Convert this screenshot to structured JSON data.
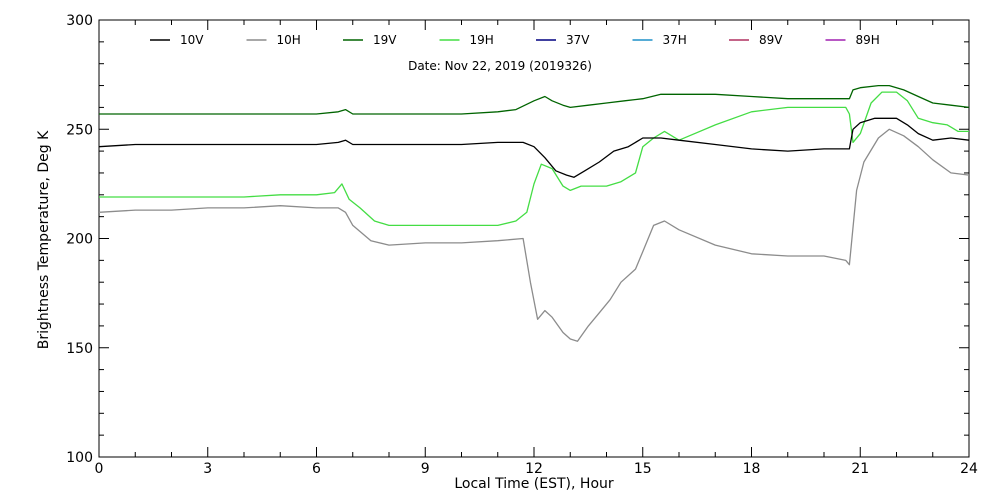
{
  "chart_data": {
    "type": "line",
    "annotation": "Date: Nov 22, 2019 (2019326)",
    "xlabel": "Local Time (EST), Hour",
    "ylabel": "Brightness Temperature, Deg K",
    "xlim": [
      0,
      24
    ],
    "ylim": [
      100,
      300
    ],
    "xticks": [
      0,
      3,
      6,
      9,
      12,
      15,
      18,
      21,
      24
    ],
    "xtick_labels": [
      "0",
      "3",
      "6",
      "9",
      "12",
      "15",
      "18",
      "21",
      "24"
    ],
    "yticks": [
      100,
      150,
      200,
      250,
      300
    ],
    "ytick_labels": [
      "100",
      "150",
      "200",
      "250",
      "300"
    ],
    "legend_position": "top",
    "grid": false,
    "series": [
      {
        "name": "10V",
        "color": "#000000",
        "x": [
          0,
          1,
          2,
          3,
          4,
          5,
          6,
          6.6,
          6.8,
          7,
          8,
          9,
          10,
          11,
          11.7,
          12.0,
          12.3,
          12.6,
          12.9,
          13.1,
          13.4,
          13.8,
          14.2,
          14.6,
          15.0,
          15.5,
          16,
          17,
          18,
          19,
          20,
          20.7,
          20.8,
          21.0,
          21.4,
          22.0,
          22.3,
          22.6,
          23.0,
          23.5,
          24
        ],
        "y": [
          242,
          243,
          243,
          243,
          243,
          243,
          243,
          244,
          245,
          243,
          243,
          243,
          243,
          244,
          244,
          242,
          237,
          231,
          229,
          228,
          231,
          235,
          240,
          242,
          246,
          246,
          245,
          243,
          241,
          240,
          241,
          241,
          250,
          253,
          255,
          255,
          252,
          248,
          245,
          246,
          245
        ]
      },
      {
        "name": "10H",
        "color": "#8c8c8c",
        "x": [
          0,
          1,
          2,
          3,
          4,
          5,
          6,
          6.6,
          6.8,
          7,
          7.5,
          8,
          9,
          10,
          11,
          11.7,
          11.9,
          12.1,
          12.3,
          12.5,
          12.8,
          13.0,
          13.2,
          13.5,
          13.8,
          14.1,
          14.4,
          14.8,
          15.0,
          15.3,
          15.6,
          16,
          17,
          18,
          19,
          20,
          20.6,
          20.7,
          20.9,
          21.1,
          21.5,
          21.8,
          22.2,
          22.6,
          23.0,
          23.5,
          24
        ],
        "y": [
          212,
          213,
          213,
          214,
          214,
          215,
          214,
          214,
          212,
          206,
          199,
          197,
          198,
          198,
          199,
          200,
          180,
          163,
          167,
          164,
          157,
          154,
          153,
          160,
          166,
          172,
          180,
          186,
          194,
          206,
          208,
          204,
          197,
          193,
          192,
          192,
          190,
          188,
          222,
          235,
          246,
          250,
          247,
          242,
          236,
          230,
          229
        ]
      },
      {
        "name": "19V",
        "color": "#006400",
        "x": [
          0,
          1,
          2,
          3,
          4,
          5,
          6,
          6.6,
          6.8,
          7,
          8,
          9,
          10,
          11,
          11.5,
          12.0,
          12.3,
          12.5,
          12.8,
          13.0,
          13.5,
          14.0,
          14.5,
          15.0,
          15.5,
          16,
          17,
          18,
          19,
          20,
          20.7,
          20.8,
          21.0,
          21.5,
          21.8,
          22.2,
          22.6,
          23.0,
          23.5,
          24
        ],
        "y": [
          257,
          257,
          257,
          257,
          257,
          257,
          257,
          258,
          259,
          257,
          257,
          257,
          257,
          258,
          259,
          263,
          265,
          263,
          261,
          260,
          261,
          262,
          263,
          264,
          266,
          266,
          266,
          265,
          264,
          264,
          264,
          268,
          269,
          270,
          270,
          268,
          265,
          262,
          261,
          260
        ]
      },
      {
        "name": "19H",
        "color": "#44dd44",
        "x": [
          0,
          1,
          2,
          3,
          4,
          5,
          6,
          6.5,
          6.7,
          6.9,
          7.2,
          7.6,
          8,
          9,
          10,
          11,
          11.5,
          11.8,
          12.0,
          12.2,
          12.5,
          12.8,
          13.0,
          13.3,
          13.6,
          14.0,
          14.4,
          14.8,
          15.0,
          15.3,
          15.6,
          16,
          17,
          18,
          19,
          20,
          20.6,
          20.7,
          20.8,
          21.0,
          21.3,
          21.6,
          22.0,
          22.3,
          22.6,
          23.0,
          23.4,
          23.7,
          24
        ],
        "y": [
          219,
          219,
          219,
          219,
          219,
          220,
          220,
          221,
          225,
          218,
          214,
          208,
          206,
          206,
          206,
          206,
          208,
          212,
          225,
          234,
          232,
          224,
          222,
          224,
          224,
          224,
          226,
          230,
          242,
          246,
          249,
          245,
          252,
          258,
          260,
          260,
          260,
          257,
          244,
          248,
          262,
          267,
          267,
          263,
          255,
          253,
          252,
          249,
          249
        ]
      },
      {
        "name": "37V",
        "color": "#000080",
        "x": [],
        "y": []
      },
      {
        "name": "37H",
        "color": "#1e90c8",
        "x": [],
        "y": []
      },
      {
        "name": "89V",
        "color": "#b03060",
        "x": [],
        "y": []
      },
      {
        "name": "89H",
        "color": "#a020b0",
        "x": [],
        "y": []
      }
    ]
  }
}
